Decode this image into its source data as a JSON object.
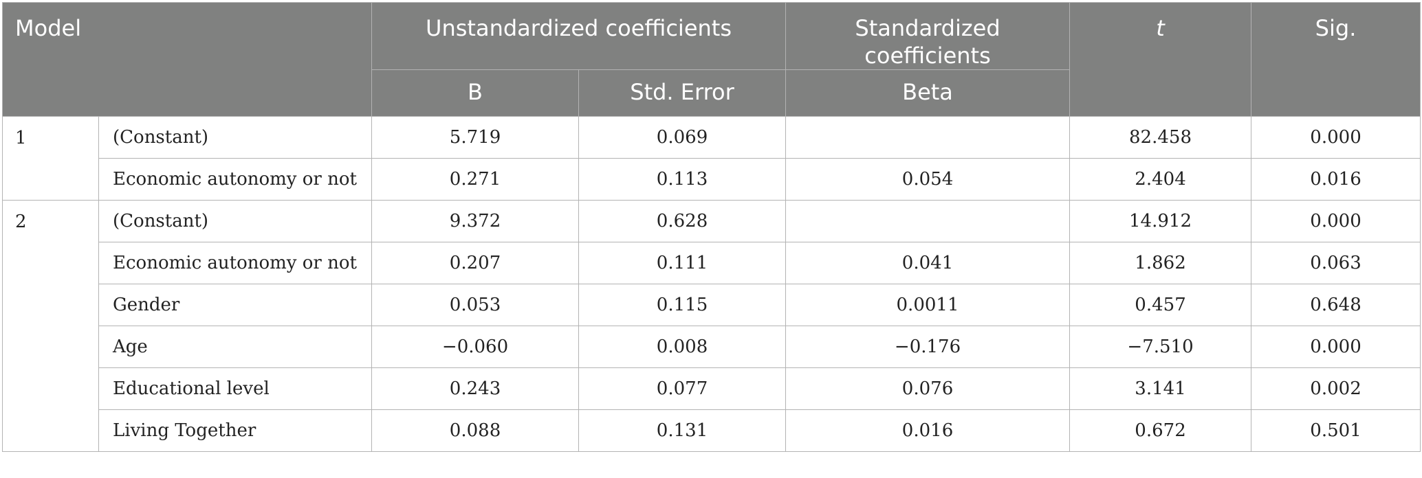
{
  "header": {
    "model": "Model",
    "unstandardized": "Unstandardized coefficients",
    "standardized": "Standardized coefficients",
    "t": "t",
    "sig": "Sig.",
    "b": "B",
    "std_error": "Std. Error",
    "beta": "Beta"
  },
  "models": [
    {
      "label": "1",
      "rows": [
        {
          "variable": "(Constant)",
          "b": "5.719",
          "se": "0.069",
          "beta": "",
          "t": "82.458",
          "sig": "0.000"
        },
        {
          "variable": "Economic autonomy or not",
          "b": "0.271",
          "se": "0.113",
          "beta": "0.054",
          "t": "2.404",
          "sig": "0.016"
        }
      ]
    },
    {
      "label": "2",
      "rows": [
        {
          "variable": "(Constant)",
          "b": "9.372",
          "se": "0.628",
          "beta": "",
          "t": "14.912",
          "sig": "0.000"
        },
        {
          "variable": "Economic autonomy or not",
          "b": "0.207",
          "se": "0.111",
          "beta": "0.041",
          "t": "1.862",
          "sig": "0.063"
        },
        {
          "variable": "Gender",
          "b": "0.053",
          "se": "0.115",
          "beta": "0.0011",
          "t": "0.457",
          "sig": "0.648"
        },
        {
          "variable": "Age",
          "b": "−0.060",
          "se": "0.008",
          "beta": "−0.176",
          "t": "−7.510",
          "sig": "0.000"
        },
        {
          "variable": "Educational level",
          "b": "0.243",
          "se": "0.077",
          "beta": "0.076",
          "t": "3.141",
          "sig": "0.002"
        },
        {
          "variable": "Living Together",
          "b": "0.088",
          "se": "0.131",
          "beta": "0.016",
          "t": "0.672",
          "sig": "0.501"
        }
      ]
    }
  ]
}
